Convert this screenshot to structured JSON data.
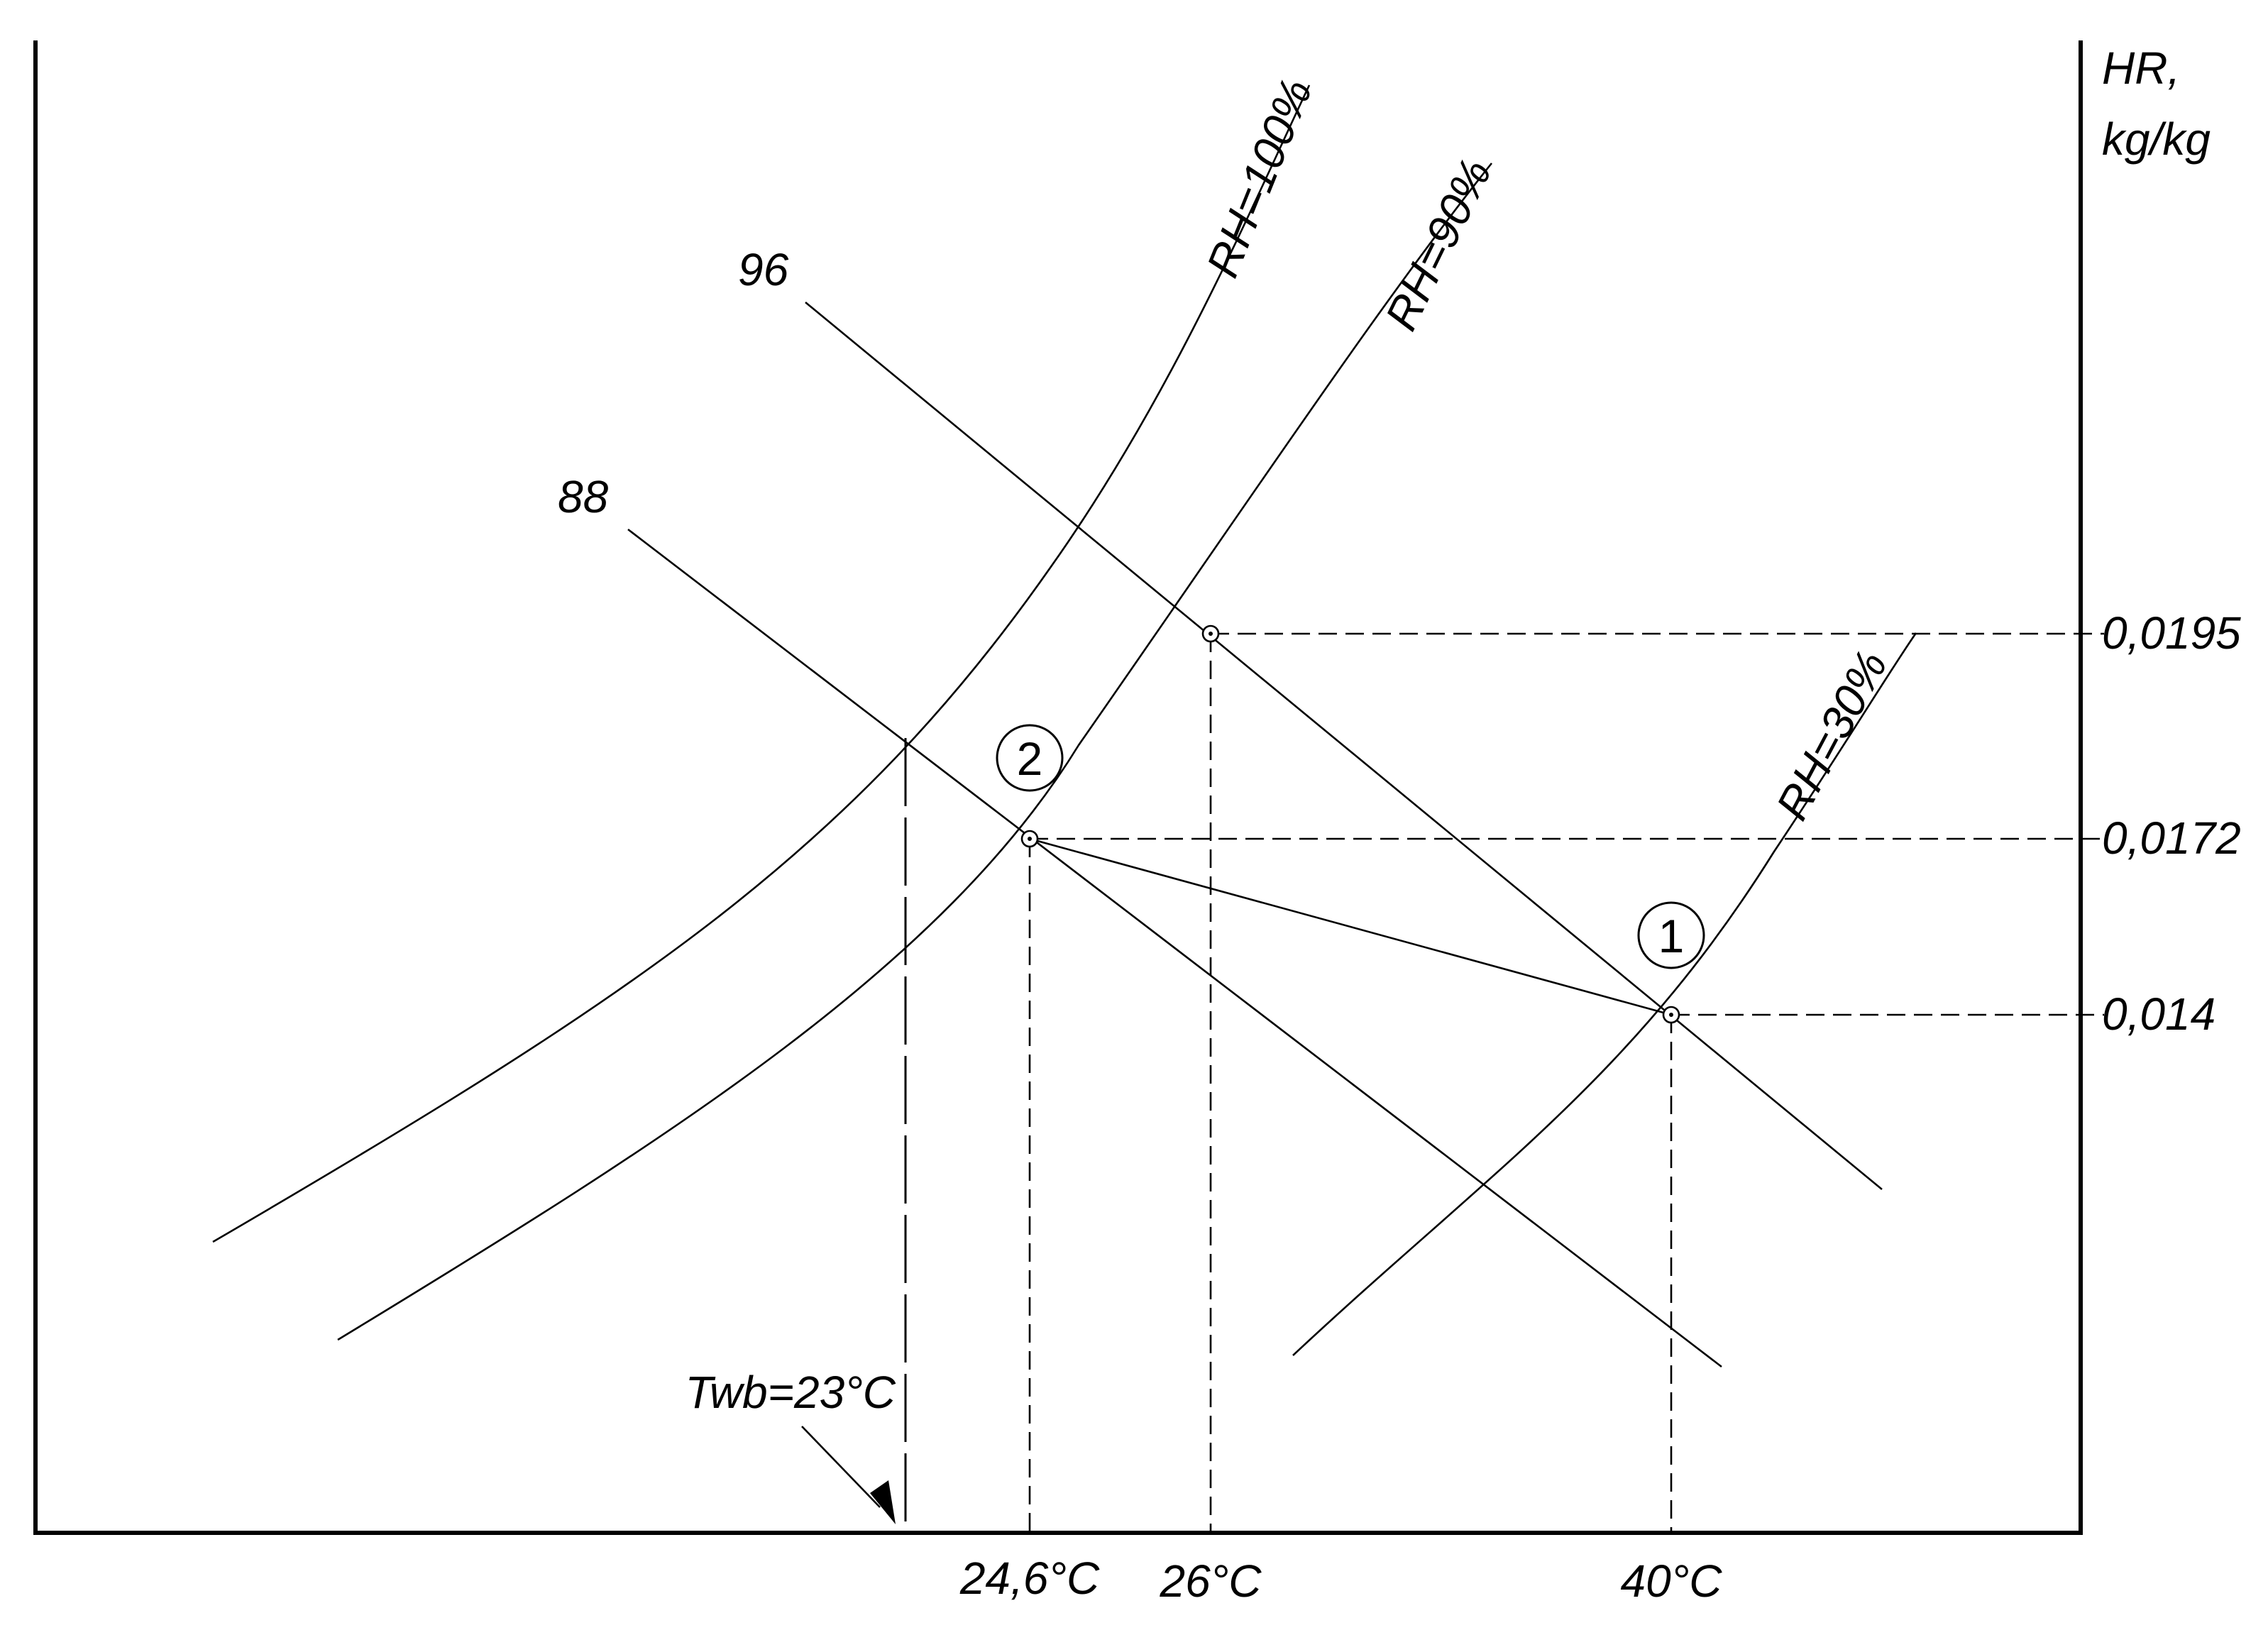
{
  "y_axis_label": {
    "line1": "HR,",
    "line2": "kg/kg"
  },
  "humidity_ticks": [
    {
      "label": "0,0195",
      "value": 0.0195
    },
    {
      "label": "0,0172",
      "value": 0.0172
    },
    {
      "label": "0,014",
      "value": 0.014
    }
  ],
  "temperature_ticks": [
    {
      "label": "24,6°C",
      "value": 24.6
    },
    {
      "label": "26°C",
      "value": 26
    },
    {
      "label": "40°C",
      "value": 40
    }
  ],
  "curves": {
    "rh100": "RH=100%",
    "rh90": "RH=90%",
    "rh30": "RH=30%"
  },
  "enthalpy_lines": {
    "h96": "96",
    "h88": "88"
  },
  "wet_bulb": {
    "label": "Twb=23°C",
    "value": 23
  },
  "state_points": [
    {
      "id": "1",
      "temp": 40,
      "hr": 0.014
    },
    {
      "id": "2",
      "temp": 24.6,
      "hr": 0.0172
    }
  ]
}
